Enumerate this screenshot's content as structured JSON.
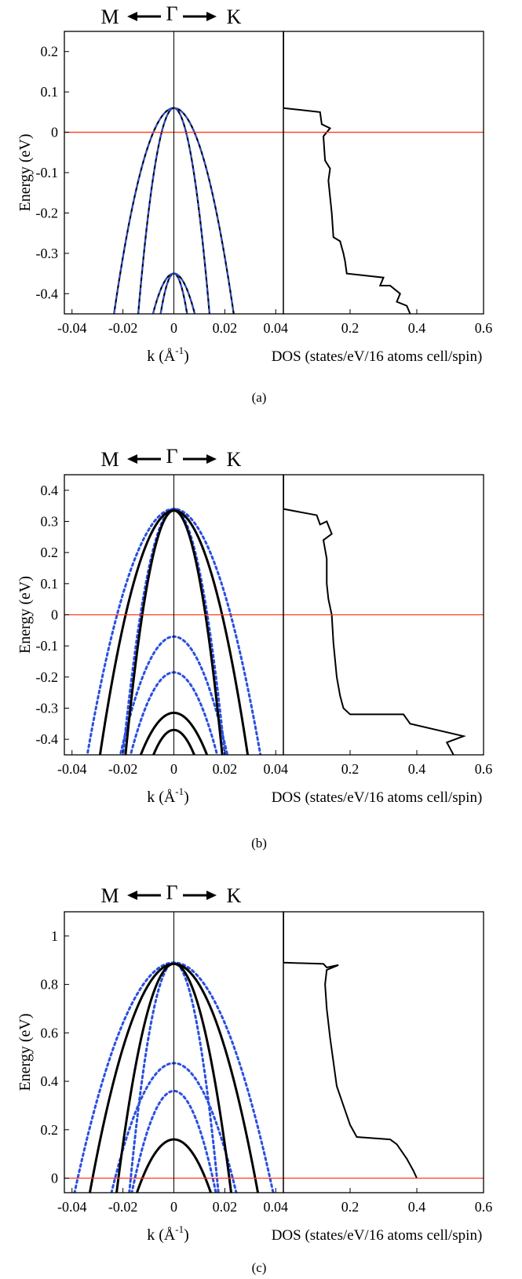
{
  "panels": [
    {
      "caption": "(a)",
      "arrow_labels": {
        "left": "M",
        "center": "Γ",
        "right": "K"
      },
      "band_xlabel": "k (Å",
      "band_xlabel_sup": "-1",
      "band_xlabel_end": ")",
      "dos_xlabel": "DOS (states/eV/16 atoms cell/spin)",
      "ylabel": "Energy (eV)",
      "ylim": [
        -0.45,
        0.25
      ],
      "yticks": [
        0.2,
        0.1,
        0,
        -0.1,
        -0.2,
        -0.3,
        -0.4
      ],
      "ytick_labels": [
        "0.2",
        "0.1",
        "0",
        "-0.1",
        "-0.2",
        "-0.3",
        "-0.4"
      ],
      "k_xlim": [
        -0.043,
        0.043
      ],
      "k_xticks": [
        -0.04,
        -0.02,
        0,
        0.02,
        0.04
      ],
      "k_xtick_labels": [
        "-0.04",
        "-0.02",
        "0",
        "0.02",
        "0.04"
      ],
      "dos_xlim": [
        0,
        0.6
      ],
      "dos_xticks": [
        0.2,
        0.4,
        0.6
      ],
      "dos_xtick_labels": [
        "0.2",
        "0.4",
        "0.6"
      ],
      "fermi_level": 0,
      "colors": {
        "solid": "#000000",
        "dotted": "#2a4fe0",
        "fermi": "#ff3b1f"
      }
    },
    {
      "caption": "(b)",
      "arrow_labels": {
        "left": "M",
        "center": "Γ",
        "right": "K"
      },
      "band_xlabel": "k (Å",
      "band_xlabel_sup": "-1",
      "band_xlabel_end": ")",
      "dos_xlabel": "DOS (states/eV/16 atoms cell/spin)",
      "ylabel": "Energy (eV)",
      "ylim": [
        -0.45,
        0.45
      ],
      "yticks": [
        0.4,
        0.3,
        0.2,
        0.1,
        0,
        -0.1,
        -0.2,
        -0.3,
        -0.4
      ],
      "ytick_labels": [
        "0.4",
        "0.3",
        "0.2",
        "0.1",
        "0",
        "-0.1",
        "-0.2",
        "-0.3",
        "-0.4"
      ],
      "k_xlim": [
        -0.043,
        0.043
      ],
      "k_xticks": [
        -0.04,
        -0.02,
        0,
        0.02,
        0.04
      ],
      "k_xtick_labels": [
        "-0.04",
        "-0.02",
        "0",
        "0.02",
        "0.04"
      ],
      "dos_xlim": [
        0,
        0.6
      ],
      "dos_xticks": [
        0.2,
        0.4,
        0.6
      ],
      "dos_xtick_labels": [
        "0.2",
        "0.4",
        "0.6"
      ],
      "fermi_level": 0,
      "colors": {
        "solid": "#000000",
        "dotted": "#2a4fe0",
        "fermi": "#ff3b1f"
      }
    },
    {
      "caption": "(c)",
      "arrow_labels": {
        "left": "M",
        "center": "Γ",
        "right": "K"
      },
      "band_xlabel": "k (Å",
      "band_xlabel_sup": "-1",
      "band_xlabel_end": ")",
      "dos_xlabel": "DOS (states/eV/16 atoms cell/spin)",
      "ylabel": "Energy (eV)",
      "ylim": [
        -0.06,
        1.1
      ],
      "yticks": [
        1,
        0.8,
        0.6,
        0.4,
        0.2,
        0
      ],
      "ytick_labels": [
        "1",
        "0.8",
        "0.6",
        "0.4",
        "0.2",
        "0"
      ],
      "k_xlim": [
        -0.043,
        0.043
      ],
      "k_xticks": [
        -0.04,
        -0.02,
        0,
        0.02,
        0.04
      ],
      "k_xtick_labels": [
        "-0.04",
        "-0.02",
        "0",
        "0.02",
        "0.04"
      ],
      "dos_xlim": [
        0,
        0.6
      ],
      "dos_xticks": [
        0.2,
        0.4,
        0.6
      ],
      "dos_xtick_labels": [
        "0.2",
        "0.4",
        "0.6"
      ],
      "fermi_level": 0,
      "colors": {
        "solid": "#000000",
        "dotted": "#2a4fe0",
        "fermi": "#ff3b1f"
      }
    }
  ],
  "chart_data": [
    {
      "type": "line",
      "panel": "(a)",
      "ylabel": "Energy (eV)",
      "bands": [
        {
          "style": "solid",
          "top": 0.06,
          "half_width_at_ymin": 0.0235
        },
        {
          "style": "solid",
          "top": 0.06,
          "half_width_at_ymin": 0.014
        },
        {
          "style": "solid",
          "top": -0.35,
          "half_width_at_ymin": 0.0082
        },
        {
          "style": "solid",
          "top": -0.35,
          "half_width_at_ymin": 0.0052
        },
        {
          "style": "dotted",
          "top": 0.06,
          "half_width_at_ymin": 0.0235
        },
        {
          "style": "dotted",
          "top": 0.06,
          "half_width_at_ymin": 0.014
        },
        {
          "style": "dotted",
          "top": -0.35,
          "half_width_at_ymin": 0.0082
        },
        {
          "style": "dotted",
          "top": -0.35,
          "half_width_at_ymin": 0.0052
        }
      ],
      "dos": {
        "x": [
          0,
          0,
          0.11,
          0.115,
          0.14,
          0.12,
          0.125,
          0.14,
          0.135,
          0.145,
          0.15,
          0.17,
          0.18,
          0.185,
          0.19,
          0.3,
          0.29,
          0.32,
          0.35,
          0.34,
          0.37,
          0.38
        ],
        "y": [
          0.25,
          0.06,
          0.05,
          0.02,
          0.01,
          -0.01,
          -0.07,
          -0.09,
          -0.12,
          -0.2,
          -0.26,
          -0.27,
          -0.3,
          -0.32,
          -0.35,
          -0.36,
          -0.38,
          -0.38,
          -0.4,
          -0.42,
          -0.43,
          -0.45
        ]
      }
    },
    {
      "type": "line",
      "panel": "(b)",
      "ylabel": "Energy (eV)",
      "bands": [
        {
          "style": "solid",
          "top": 0.335,
          "half_width_at_ymin": 0.029
        },
        {
          "style": "solid",
          "top": 0.335,
          "half_width_at_ymin": 0.019
        },
        {
          "style": "solid",
          "top": -0.315,
          "half_width_at_ymin": 0.013
        },
        {
          "style": "solid",
          "top": -0.37,
          "half_width_at_ymin": 0.008
        },
        {
          "style": "dotted",
          "top": 0.34,
          "half_width_at_ymin": 0.034
        },
        {
          "style": "dotted",
          "top": 0.34,
          "half_width_at_ymin": 0.02
        },
        {
          "style": "dotted",
          "top": -0.07,
          "half_width_at_ymin": 0.021
        },
        {
          "style": "dotted",
          "top": -0.185,
          "half_width_at_ymin": 0.017
        }
      ],
      "dos": {
        "x": [
          0,
          0,
          0.1,
          0.11,
          0.13,
          0.145,
          0.12,
          0.13,
          0.13,
          0.135,
          0.145,
          0.15,
          0.16,
          0.17,
          0.18,
          0.2,
          0.36,
          0.38,
          0.54,
          0.49,
          0.5,
          0.51
        ],
        "y": [
          0.45,
          0.34,
          0.32,
          0.29,
          0.3,
          0.26,
          0.24,
          0.18,
          0.1,
          0.05,
          0,
          -0.09,
          -0.2,
          -0.26,
          -0.3,
          -0.32,
          -0.32,
          -0.35,
          -0.39,
          -0.41,
          -0.43,
          -0.45
        ]
      }
    },
    {
      "type": "line",
      "panel": "(c)",
      "ylabel": "Energy (eV)",
      "bands": [
        {
          "style": "solid",
          "top": 0.885,
          "half_width_at_ymin": 0.033
        },
        {
          "style": "solid",
          "top": 0.885,
          "half_width_at_ymin": 0.0225
        },
        {
          "style": "solid",
          "top": 0.16,
          "half_width_at_ymin": 0.0145
        },
        {
          "style": "dotted",
          "top": 0.89,
          "half_width_at_ymin": 0.039
        },
        {
          "style": "dotted",
          "top": 0.89,
          "half_width_at_ymin": 0.0175
        },
        {
          "style": "dotted",
          "top": 0.475,
          "half_width_at_ymin": 0.0245
        },
        {
          "style": "dotted",
          "top": 0.36,
          "half_width_at_ymin": 0.0165
        }
      ],
      "dos": {
        "x": [
          0,
          0,
          0.12,
          0.13,
          0.165,
          0.13,
          0.125,
          0.13,
          0.14,
          0.15,
          0.16,
          0.18,
          0.2,
          0.22,
          0.32,
          0.34,
          0.37,
          0.39,
          0.4
        ],
        "y": [
          1.1,
          0.89,
          0.885,
          0.87,
          0.88,
          0.86,
          0.8,
          0.7,
          0.58,
          0.48,
          0.38,
          0.3,
          0.22,
          0.17,
          0.16,
          0.14,
          0.08,
          0.03,
          0
        ]
      }
    }
  ]
}
